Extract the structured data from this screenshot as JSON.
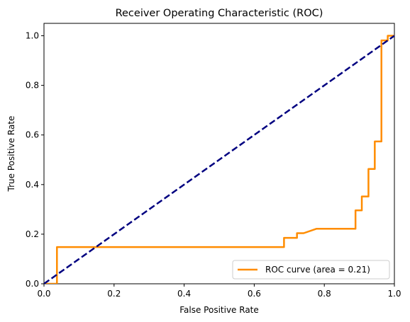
{
  "chart_data": {
    "type": "line",
    "title": "Receiver Operating Characteristic (ROC)",
    "xlabel": "False Positive Rate",
    "ylabel": "True Positive Rate",
    "xlim": [
      0.0,
      1.0
    ],
    "ylim": [
      0.0,
      1.05
    ],
    "x_ticks": [
      "0.0",
      "0.2",
      "0.4",
      "0.6",
      "0.8",
      "1.0"
    ],
    "y_ticks": [
      "0.0",
      "0.2",
      "0.4",
      "0.6",
      "0.8",
      "1.0"
    ],
    "grid": false,
    "legend_position": "lower right",
    "series": [
      {
        "name": "ROC curve (area = 0.21)",
        "color": "#ff8c00",
        "style": "solid",
        "x": [
          0.0,
          0.037,
          0.037,
          0.685,
          0.685,
          0.722,
          0.722,
          0.741,
          0.778,
          0.889,
          0.889,
          0.907,
          0.907,
          0.926,
          0.926,
          0.944,
          0.944,
          0.963,
          0.963,
          0.981,
          0.981,
          1.0
        ],
        "y": [
          0.0,
          0.0,
          0.148,
          0.148,
          0.185,
          0.185,
          0.204,
          0.204,
          0.222,
          0.222,
          0.296,
          0.296,
          0.352,
          0.352,
          0.463,
          0.463,
          0.574,
          0.574,
          0.981,
          0.981,
          1.0,
          1.0
        ]
      },
      {
        "color": "#000080",
        "style": "dashed",
        "x": [
          0.0,
          1.0
        ],
        "y": [
          0.0,
          1.0
        ]
      }
    ]
  }
}
